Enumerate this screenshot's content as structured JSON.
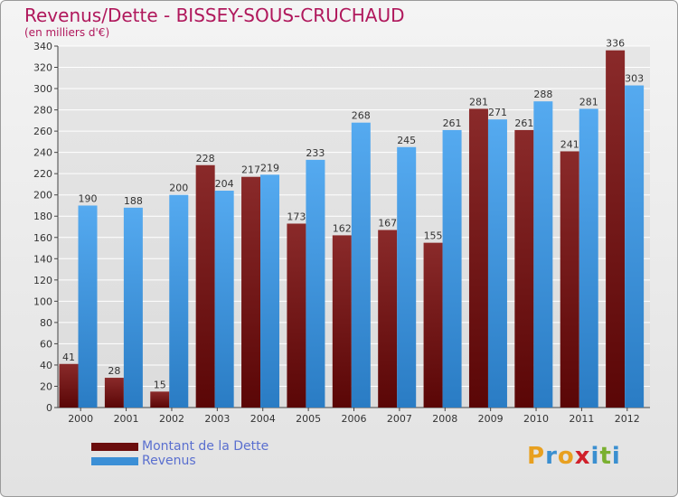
{
  "header": {
    "title": "Revenus/Dette - BISSEY-SOUS-CRUCHAUD",
    "subtitle": "(en milliers d'€)"
  },
  "legend": {
    "items": [
      {
        "label": "Montant de la Dette",
        "color": "#6b0d0d"
      },
      {
        "label": "Revenus",
        "color": "#3b8fd6"
      }
    ]
  },
  "brand": {
    "text": "Proxiti",
    "letters": [
      "P",
      "r",
      "o",
      "x",
      "i",
      "t",
      "i"
    ],
    "colors": [
      "#e8a020",
      "#3a8fd0",
      "#e8a020",
      "#d0202a",
      "#3a8fd0",
      "#7ab030",
      "#3a8fd0"
    ]
  },
  "colors": {
    "title": "#b0185c",
    "dette": "#6b0d0d",
    "revenus": "#3b8fd6",
    "grid": "#ffffff",
    "axis": "#444444"
  },
  "chart_data": {
    "type": "bar",
    "categories": [
      "2000",
      "2001",
      "2002",
      "2003",
      "2004",
      "2005",
      "2006",
      "2007",
      "2008",
      "2009",
      "2010",
      "2011",
      "2012"
    ],
    "series": [
      {
        "name": "Montant de la Dette",
        "values": [
          41,
          28,
          15,
          228,
          217,
          173,
          162,
          167,
          155,
          281,
          261,
          241,
          336
        ]
      },
      {
        "name": "Revenus",
        "values": [
          190,
          188,
          200,
          204,
          219,
          233,
          268,
          245,
          261,
          271,
          288,
          281,
          303
        ]
      }
    ],
    "title": "Revenus/Dette - BISSEY-SOUS-CRUCHAUD",
    "ylabel": "(en milliers d'€)",
    "ylim": [
      0,
      340
    ],
    "yticks": [
      0,
      20,
      40,
      60,
      80,
      100,
      120,
      140,
      160,
      180,
      200,
      220,
      240,
      260,
      280,
      300,
      320,
      340
    ],
    "grid": true,
    "legend_position": "bottom-left",
    "data_labels": true
  }
}
